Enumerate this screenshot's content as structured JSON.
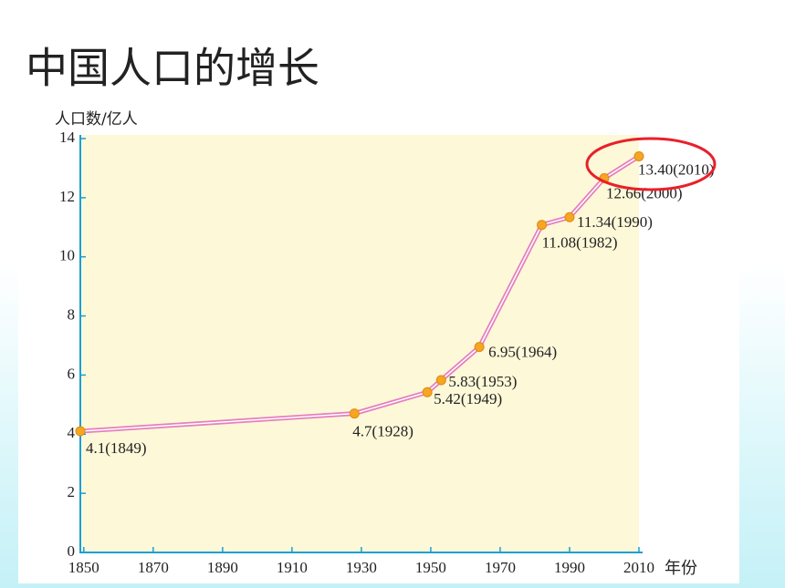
{
  "title": "中国人口的增长",
  "chart_data": {
    "type": "line",
    "y_label": "人口数/亿人",
    "x_label": "年份",
    "x": [
      1849,
      1928,
      1949,
      1953,
      1964,
      1982,
      1990,
      2000,
      2010
    ],
    "series": [
      {
        "color": "#e57fbf",
        "values": [
          4.1,
          4.7,
          5.42,
          5.83,
          6.95,
          11.08,
          11.34,
          12.66,
          13.4
        ],
        "value_labels": [
          "4.1(1849)",
          "4.7(1928)",
          "5.42(1949)",
          "5.83(1953)",
          "6.95(1964)",
          "11.08(1982)",
          "11.34(1990)",
          "12.66(2000)",
          "13.40(2010)"
        ]
      }
    ],
    "marker_color": "#f5a623",
    "xlim": [
      1849,
      2010
    ],
    "xticks": [
      1850,
      1870,
      1890,
      1910,
      1930,
      1950,
      1970,
      1990,
      2010
    ],
    "ylim": [
      0,
      14
    ],
    "yticks": [
      0,
      2,
      4,
      6,
      8,
      10,
      12,
      14
    ]
  }
}
